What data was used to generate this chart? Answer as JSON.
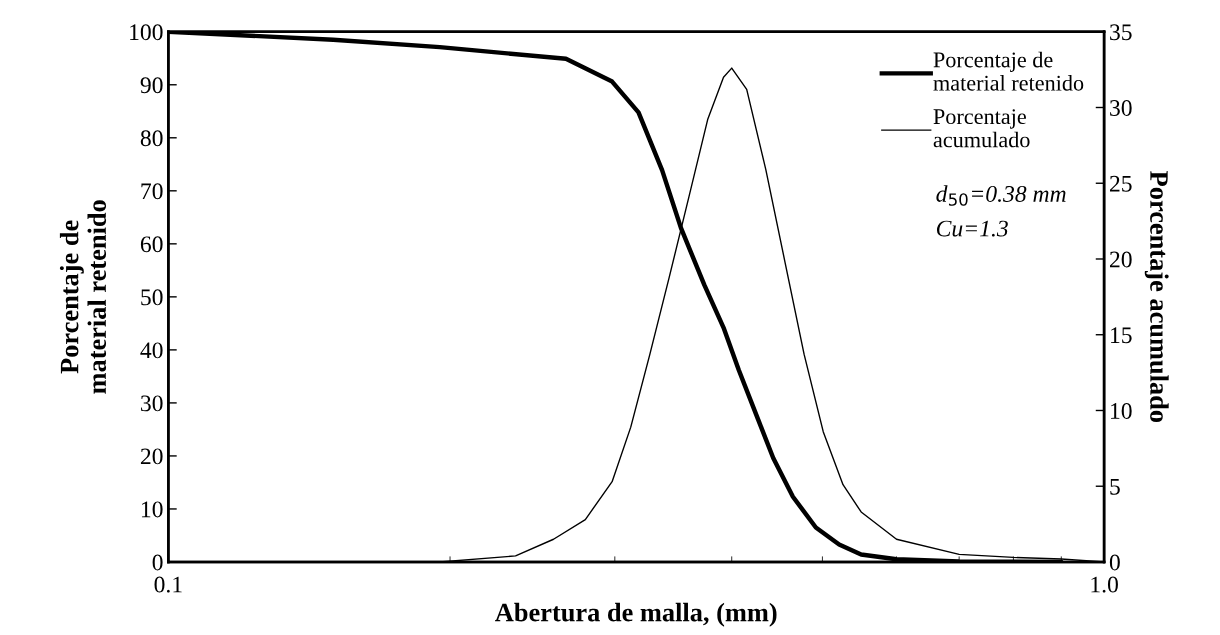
{
  "chart_data": {
    "type": "line",
    "xlabel": "Abertura de malla, (mm)",
    "ylabel": "Porcentaje de\nmaterial retenido",
    "y2label": "Porcentaje acumulado",
    "log": "x",
    "xlim": [
      0.1,
      1.0
    ],
    "xticks": [
      0.1,
      {
        "value": 1.0,
        "label": "1.0"
      }
    ],
    "ylim": [
      0,
      100
    ],
    "yticks": [
      0,
      10,
      20,
      30,
      40,
      50,
      60,
      70,
      80,
      90,
      100
    ],
    "y2lim": [
      0,
      35
    ],
    "y2ticks": [
      0,
      5,
      10,
      15,
      20,
      25,
      30,
      35
    ],
    "legend": "top right",
    "grid": false,
    "marker": "none",
    "line_style": "solid",
    "annotations": [
      "d$_{50}$=0.38 mm",
      "Cu=1.3"
    ],
    "series": [
      {
        "name": "Porcentaje de\nmaterial retenido",
        "color": "#000000",
        "x": [
          0.1,
          0.15,
          0.195,
          0.266,
          0.298,
          0.318,
          0.337,
          0.353,
          0.374,
          0.392,
          0.407,
          0.427,
          0.443,
          0.465,
          0.492,
          0.521,
          0.55,
          0.6,
          0.7,
          0.9
        ],
        "values": [
          100,
          98.5,
          97.1,
          94.9,
          90.6,
          84.8,
          73.9,
          63.0,
          52.2,
          44.2,
          36.2,
          26.8,
          19.6,
          12.3,
          6.5,
          3.3,
          1.4,
          0.5,
          0.1,
          0
        ]
      },
      {
        "name": "Porcentaje\nacumulado",
        "color": "#000000",
        "axis": "y2",
        "x": [
          0.1,
          0.195,
          0.235,
          0.258,
          0.279,
          0.298,
          0.312,
          0.327,
          0.343,
          0.36,
          0.377,
          0.392,
          0.4,
          0.415,
          0.435,
          0.456,
          0.478,
          0.501,
          0.526,
          0.55,
          0.6,
          0.7,
          0.8,
          0.9,
          1.0
        ],
        "values": [
          0,
          0,
          0.4,
          1.5,
          2.8,
          5.3,
          8.9,
          13.7,
          18.8,
          24.1,
          29.2,
          32.0,
          32.6,
          31.2,
          25.9,
          19.8,
          13.7,
          8.6,
          5.1,
          3.3,
          1.5,
          0.5,
          0.3,
          0.2,
          0
        ]
      }
    ]
  }
}
